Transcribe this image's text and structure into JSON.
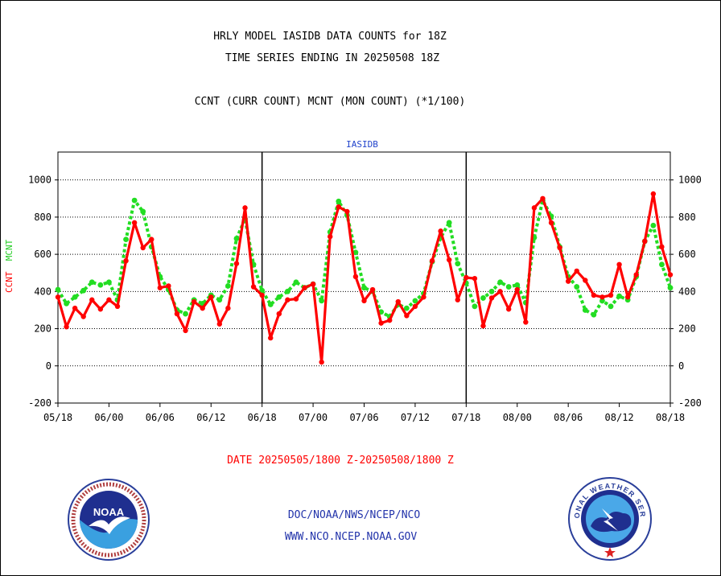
{
  "header": {
    "title_line1": "HRLY MODEL IASIDB DATA COUNTS for 18Z",
    "title_line2": "TIME SERIES ENDING IN 20250508 18Z",
    "subtitle": "CCNT (CURR COUNT) MCNT (MON COUNT) (*1/100)"
  },
  "panel_label": "IASIDB",
  "yaxis_label": {
    "ccnt": "CCNT",
    "mcnt": "MCNT"
  },
  "date_range": "DATE 20250505/1800 Z-20250508/1800 Z",
  "footer": {
    "line1": "DOC/NOAA/NWS/NCEP/NCO",
    "line2": "WWW.NCO.NCEP.NOAA.GOV"
  },
  "logos": {
    "left": "NOAA",
    "right": "NATIONAL WEATHER SERVICE"
  },
  "colors": {
    "ccnt": "#ff0000",
    "mcnt": "#22dd22",
    "axis": "#000000",
    "footer": "#2233aa"
  },
  "chart_data": {
    "type": "line",
    "title": "HRLY MODEL IASIDB DATA COUNTS for 18Z",
    "ylim": [
      -200,
      1150
    ],
    "yticks": [
      -200,
      0,
      200,
      400,
      600,
      800,
      1000
    ],
    "x_tick_labels": [
      "05/18",
      "06/00",
      "06/06",
      "06/12",
      "06/18",
      "07/00",
      "07/06",
      "07/12",
      "07/18",
      "08/00",
      "08/06",
      "08/12",
      "08/18"
    ],
    "x_range_hours": [
      0,
      72
    ],
    "grid": "horizontal dotted",
    "series": [
      {
        "name": "CCNT",
        "color": "#ff0000",
        "style": "solid",
        "values": [
          370,
          210,
          310,
          265,
          355,
          305,
          355,
          320,
          565,
          770,
          635,
          680,
          420,
          430,
          280,
          190,
          345,
          310,
          370,
          225,
          310,
          550,
          850,
          425,
          380,
          150,
          280,
          355,
          360,
          420,
          440,
          20,
          695,
          855,
          830,
          480,
          350,
          410,
          230,
          245,
          345,
          270,
          320,
          370,
          565,
          725,
          570,
          355,
          475,
          470,
          215,
          365,
          400,
          305,
          410,
          235,
          850,
          900,
          770,
          635,
          455,
          510,
          460,
          380,
          370,
          380,
          545,
          370,
          490,
          670,
          925,
          640,
          490
        ]
      },
      {
        "name": "MCNT",
        "color": "#22dd22",
        "style": "dotted",
        "values": [
          410,
          335,
          370,
          405,
          450,
          435,
          450,
          355,
          680,
          890,
          830,
          640,
          480,
          410,
          300,
          280,
          355,
          335,
          380,
          355,
          430,
          685,
          790,
          545,
          405,
          330,
          370,
          400,
          450,
          420,
          440,
          350,
          720,
          885,
          810,
          610,
          420,
          400,
          290,
          265,
          330,
          310,
          350,
          390,
          560,
          690,
          770,
          550,
          445,
          320,
          365,
          400,
          450,
          425,
          435,
          340,
          690,
          890,
          805,
          640,
          480,
          425,
          300,
          275,
          350,
          320,
          375,
          355,
          480,
          670,
          755,
          545,
          420
        ]
      }
    ]
  }
}
